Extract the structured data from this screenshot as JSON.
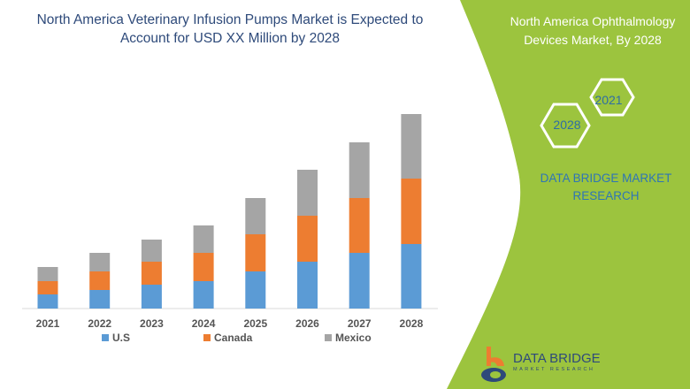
{
  "title": "North America Veterinary Infusion Pumps Market is Expected to Account for USD XX Million by 2028",
  "side_panel": {
    "title": "North America Ophthalmology Devices Market, By 2028",
    "hex_badges": [
      "2021",
      "2028"
    ],
    "brand_text": "DATA BRIDGE MARKET RESEARCH",
    "logo_text": "DATA BRIDGE",
    "logo_subtext": "MARKET RESEARCH",
    "panel_color": "#9cc43e"
  },
  "chart_data": {
    "type": "bar",
    "stacked": true,
    "title": "North America Veterinary Infusion Pumps Market is Expected to Account for USD XX Million by 2028",
    "categories": [
      "2021",
      "2022",
      "2023",
      "2024",
      "2025",
      "2026",
      "2027",
      "2028"
    ],
    "series": [
      {
        "name": "U.S",
        "color": "#5b9bd5",
        "values": [
          16,
          21,
          27,
          31,
          42,
          53,
          63,
          73
        ]
      },
      {
        "name": "Canada",
        "color": "#ed7d31",
        "values": [
          15,
          21,
          26,
          32,
          42,
          52,
          62,
          74
        ]
      },
      {
        "name": "Mexico",
        "color": "#a5a5a5",
        "values": [
          16,
          21,
          25,
          31,
          41,
          52,
          63,
          73
        ]
      }
    ],
    "y_axis_shown": false,
    "grid": false,
    "legend": "bottom"
  }
}
